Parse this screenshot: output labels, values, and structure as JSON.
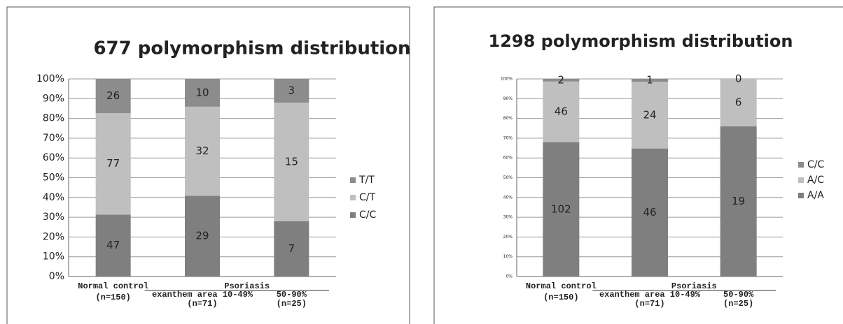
{
  "chart_data": [
    {
      "type": "bar",
      "stack": "percent",
      "title": "677 polymorphism  distribution",
      "categories": [
        "Normal control",
        "exanthem area 10-49%",
        "50-90%"
      ],
      "category_counts": [
        "(n=150)",
        "(n=71)",
        "(n=25)"
      ],
      "group_label": "Psoriasis",
      "series": [
        {
          "name": "C/C",
          "color": "#7f7f7f",
          "values": [
            47,
            29,
            7
          ]
        },
        {
          "name": "C/T",
          "color": "#bfbfbf",
          "values": [
            77,
            32,
            15
          ]
        },
        {
          "name": "T/T",
          "color": "#8c8c8c",
          "values": [
            26,
            10,
            3
          ]
        }
      ],
      "ylim": [
        0,
        100
      ],
      "yticks": [
        {
          "value": 0,
          "label": "0%"
        },
        {
          "value": 10,
          "label": "10%"
        },
        {
          "value": 20,
          "label": "20%"
        },
        {
          "value": 30,
          "label": "30%"
        },
        {
          "value": 40,
          "label": "40%"
        },
        {
          "value": 50,
          "label": "50%"
        },
        {
          "value": 60,
          "label": "60%"
        },
        {
          "value": 70,
          "label": "70%"
        },
        {
          "value": 80,
          "label": "80%"
        },
        {
          "value": 90,
          "label": "90%"
        },
        {
          "value": 100,
          "label": "100%"
        }
      ],
      "grid": true,
      "legend": "right"
    },
    {
      "type": "bar",
      "stack": "percent",
      "title": "1298 polymorphism distribution",
      "categories": [
        "Normal control",
        "exanthem area 10-49%",
        "50-90%"
      ],
      "category_counts": [
        "(n=150)",
        "(n=71)",
        "(n=25)"
      ],
      "group_label": "Psoriasis",
      "series": [
        {
          "name": "A/A",
          "color": "#7f7f7f",
          "values": [
            102,
            46,
            19
          ]
        },
        {
          "name": "A/C",
          "color": "#bfbfbf",
          "values": [
            46,
            24,
            6
          ]
        },
        {
          "name": "C/C",
          "color": "#8c8c8c",
          "values": [
            2,
            1,
            0
          ]
        }
      ],
      "ylim": [
        0,
        100
      ],
      "yticks": [
        {
          "value": 0,
          "label": "0%"
        },
        {
          "value": 10,
          "label": "10%"
        },
        {
          "value": 20,
          "label": "20%"
        },
        {
          "value": 30,
          "label": "30%"
        },
        {
          "value": 40,
          "label": "40%"
        },
        {
          "value": 50,
          "label": "50%"
        },
        {
          "value": 60,
          "label": "60%"
        },
        {
          "value": 70,
          "label": "70%"
        },
        {
          "value": 80,
          "label": "80%"
        },
        {
          "value": 90,
          "label": "90%"
        },
        {
          "value": 100,
          "label": "100%"
        }
      ],
      "grid": true,
      "legend": "right"
    }
  ]
}
